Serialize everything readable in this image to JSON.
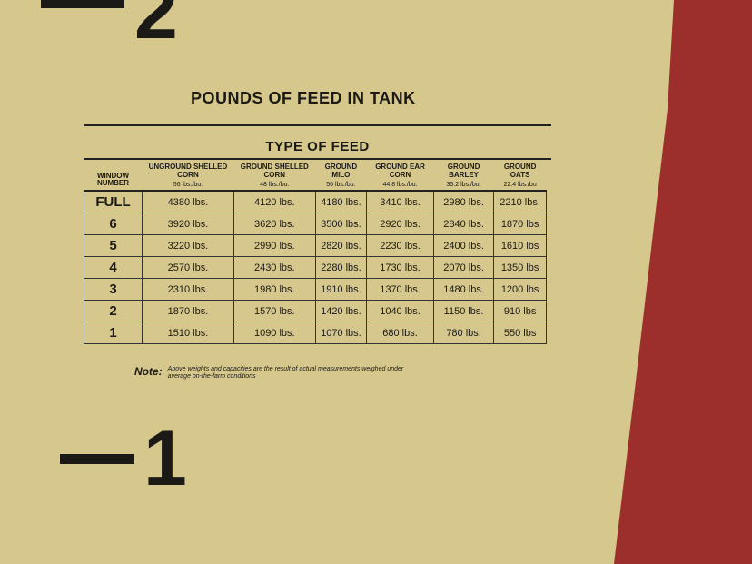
{
  "markers": {
    "top": "2",
    "bottom": "1"
  },
  "title": "POUNDS OF FEED IN TANK",
  "table": {
    "group_header": "TYPE OF FEED",
    "row_header": "WINDOW NUMBER",
    "columns": [
      {
        "name": "UNGROUND SHELLED CORN",
        "weight": "56 lbs./bu."
      },
      {
        "name": "GROUND SHELLED CORN",
        "weight": "48 lbs./bu."
      },
      {
        "name": "GROUND MILO",
        "weight": "56 lbs./bu."
      },
      {
        "name": "GROUND EAR CORN",
        "weight": "44.8 lbs./bu."
      },
      {
        "name": "GROUND BARLEY",
        "weight": "35.2 lbs./bu."
      },
      {
        "name": "GROUND OATS",
        "weight": "22.4 lbs./bu"
      }
    ],
    "rows": [
      [
        "FULL",
        "4380 lbs.",
        "4120 lbs.",
        "4180 lbs.",
        "3410 lbs.",
        "2980 lbs.",
        "2210 lbs."
      ],
      [
        "6",
        "3920 lbs.",
        "3620 lbs.",
        "3500 lbs.",
        "2920 lbs.",
        "2840 lbs.",
        "1870 lbs"
      ],
      [
        "5",
        "3220 lbs.",
        "2990 lbs.",
        "2820 lbs.",
        "2230 lbs.",
        "2400 lbs.",
        "1610 lbs"
      ],
      [
        "4",
        "2570 lbs.",
        "2430 lbs.",
        "2280 lbs.",
        "1730 lbs.",
        "2070 lbs.",
        "1350 lbs"
      ],
      [
        "3",
        "2310 lbs.",
        "1980 lbs.",
        "1910 lbs.",
        "1370 lbs.",
        "1480 lbs.",
        "1200 lbs"
      ],
      [
        "2",
        "1870 lbs.",
        "1570 lbs.",
        "1420 lbs.",
        "1040 lbs.",
        "1150 lbs.",
        "910 lbs"
      ],
      [
        "1",
        "1510 lbs.",
        "1090 lbs.",
        "1070 lbs.",
        "680 lbs.",
        "780 lbs.",
        "550 lbs"
      ]
    ]
  },
  "note": {
    "label": "Note:",
    "text": "Above weights and capacities are the result of actual measurements weighed under average on-the-farm conditions"
  }
}
